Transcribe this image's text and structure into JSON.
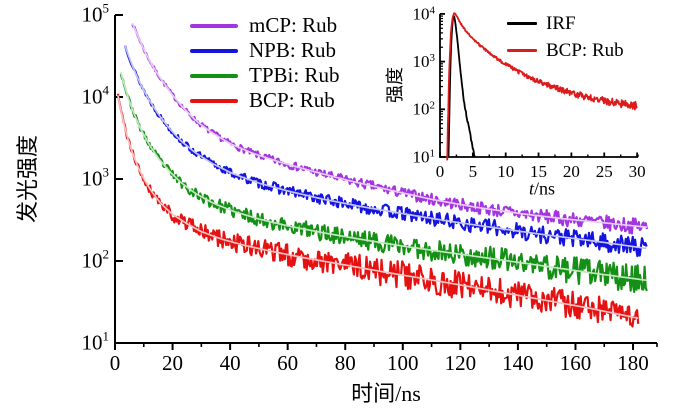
{
  "figure": {
    "background": "#ffffff",
    "text_color": "#000000"
  },
  "chart_data": [
    {
      "id": "main",
      "type": "line",
      "xscale": "linear",
      "yscale": "log",
      "xlabel": "时间/ns",
      "ylabel": "发光强度",
      "xlim": [
        0,
        190
      ],
      "ylim": [
        10,
        100000
      ],
      "xticks": [
        0,
        20,
        40,
        60,
        80,
        100,
        120,
        140,
        160,
        180
      ],
      "x_minor_ticks": [
        10,
        30,
        50,
        70,
        90,
        110,
        130,
        150,
        170
      ],
      "y_tick_exponents": [
        1,
        2,
        3,
        4,
        5
      ],
      "grid": false,
      "legend_position": "top-left-inside",
      "series": [
        {
          "name": "mCP: Rub",
          "color": "#A335E0",
          "fit_color": "#E6CBF7",
          "noise_seed": 7,
          "noise_scale": 1,
          "anchors": [
            [
              6,
              80000
            ],
            [
              8,
              55000
            ],
            [
              10,
              38000
            ],
            [
              13,
              24000
            ],
            [
              16,
              16500
            ],
            [
              20,
              10500
            ],
            [
              24,
              7200
            ],
            [
              28,
              5200
            ],
            [
              33,
              3800
            ],
            [
              40,
              2700
            ],
            [
              48,
              2050
            ],
            [
              57,
              1620
            ],
            [
              68,
              1260
            ],
            [
              80,
              980
            ],
            [
              95,
              740
            ],
            [
              110,
              565
            ],
            [
              125,
              455
            ],
            [
              140,
              382
            ],
            [
              155,
              330
            ],
            [
              170,
              292
            ],
            [
              185,
              258
            ]
          ]
        },
        {
          "name": "NPB: Rub",
          "color": "#1414DE",
          "fit_color": "#C3C3F8",
          "noise_seed": 13,
          "noise_scale": 1,
          "anchors": [
            [
              3.5,
              42000
            ],
            [
              5,
              30000
            ],
            [
              7,
              20000
            ],
            [
              9,
              14000
            ],
            [
              12,
              9000
            ],
            [
              15,
              6200
            ],
            [
              19,
              4100
            ],
            [
              23,
              2900
            ],
            [
              28,
              2080
            ],
            [
              34,
              1530
            ],
            [
              41,
              1160
            ],
            [
              50,
              890
            ],
            [
              60,
              715
            ],
            [
              72,
              570
            ],
            [
              85,
              465
            ],
            [
              100,
              378
            ],
            [
              115,
              310
            ],
            [
              130,
              260
            ],
            [
              148,
              212
            ],
            [
              165,
              178
            ],
            [
              185,
              142
            ]
          ]
        },
        {
          "name": "TPBi: Rub",
          "color": "#149014",
          "fit_color": "#C2E6C2",
          "noise_seed": 23,
          "noise_scale": 1,
          "anchors": [
            [
              2,
              20000
            ],
            [
              3.5,
              13000
            ],
            [
              5,
              8800
            ],
            [
              7,
              5800
            ],
            [
              9,
              4000
            ],
            [
              12,
              2600
            ],
            [
              15,
              1800
            ],
            [
              19,
              1230
            ],
            [
              23,
              900
            ],
            [
              28,
              665
            ],
            [
              34,
              510
            ],
            [
              41,
              405
            ],
            [
              50,
              325
            ],
            [
              60,
              268
            ],
            [
              72,
              222
            ],
            [
              85,
              185
            ],
            [
              100,
              152
            ],
            [
              115,
              128
            ],
            [
              130,
              108
            ],
            [
              148,
              88
            ],
            [
              165,
              72
            ],
            [
              185,
              58
            ]
          ]
        },
        {
          "name": "BCP: Rub",
          "color": "#E61212",
          "fit_color": "#F9C0C0",
          "noise_seed": 41,
          "noise_scale": 1,
          "anchors": [
            [
              1,
              10500
            ],
            [
              2.5,
              5800
            ],
            [
              4,
              3500
            ],
            [
              6,
              2100
            ],
            [
              8,
              1400
            ],
            [
              10,
              1000
            ],
            [
              13,
              680
            ],
            [
              16,
              500
            ],
            [
              20,
              370
            ],
            [
              25,
              285
            ],
            [
              30,
              228
            ],
            [
              37,
              185
            ],
            [
              45,
              155
            ],
            [
              55,
              130
            ],
            [
              66,
              109
            ],
            [
              78,
              92
            ],
            [
              92,
              75
            ],
            [
              106,
              62
            ],
            [
              120,
              51
            ],
            [
              135,
              41
            ],
            [
              150,
              33
            ],
            [
              165,
              26.5
            ],
            [
              182,
              20
            ]
          ]
        }
      ]
    },
    {
      "id": "inset",
      "type": "line",
      "xscale": "linear",
      "yscale": "log",
      "xlabel_var": "t",
      "xlabel_unit": "/ns",
      "ylabel": "强度",
      "xlim": [
        0,
        30.5
      ],
      "ylim": [
        10,
        10000
      ],
      "xticks": [
        0,
        5,
        10,
        15,
        20,
        25,
        30
      ],
      "x_minor_step": 2.5,
      "y_tick_exponents": [
        1,
        2,
        3,
        4
      ],
      "grid": false,
      "legend_position": "top-right-inside",
      "series": [
        {
          "name": "IRF",
          "color": "#000000",
          "noise_seed": 5,
          "noise_scale": 0.35,
          "anchors": [
            [
              1.3,
              10
            ],
            [
              1.5,
              300
            ],
            [
              1.7,
              2500
            ],
            [
              1.9,
              6500
            ],
            [
              2.05,
              9300
            ],
            [
              2.2,
              8800
            ],
            [
              2.4,
              5600
            ],
            [
              2.7,
              2400
            ],
            [
              3.0,
              900
            ],
            [
              3.3,
              380
            ],
            [
              3.6,
              160
            ],
            [
              3.9,
              90
            ],
            [
              4.2,
              55
            ],
            [
              4.6,
              30
            ],
            [
              5.0,
              15
            ],
            [
              5.3,
              10
            ]
          ]
        },
        {
          "name": "BCP: Rub",
          "color": "#DE1B1B",
          "noise_seed": 9,
          "noise_scale": 1,
          "anchors": [
            [
              1.1,
              10
            ],
            [
              1.3,
              200
            ],
            [
              1.5,
              1500
            ],
            [
              1.7,
              5000
            ],
            [
              1.95,
              9000
            ],
            [
              2.2,
              10500
            ],
            [
              2.5,
              9200
            ],
            [
              2.9,
              7200
            ],
            [
              3.4,
              5600
            ],
            [
              4.0,
              4300
            ],
            [
              4.8,
              3200
            ],
            [
              5.6,
              2500
            ],
            [
              6.5,
              1950
            ],
            [
              7.5,
              1520
            ],
            [
              8.5,
              1200
            ],
            [
              9.5,
              980
            ],
            [
              11,
              730
            ],
            [
              12.5,
              560
            ],
            [
              14,
              440
            ],
            [
              15.5,
              360
            ],
            [
              17,
              300
            ],
            [
              18.5,
              255
            ],
            [
              20,
              220
            ],
            [
              22,
              185
            ],
            [
              24,
              160
            ],
            [
              26,
              142
            ],
            [
              28,
              128
            ],
            [
              30,
              116
            ]
          ]
        }
      ]
    }
  ]
}
